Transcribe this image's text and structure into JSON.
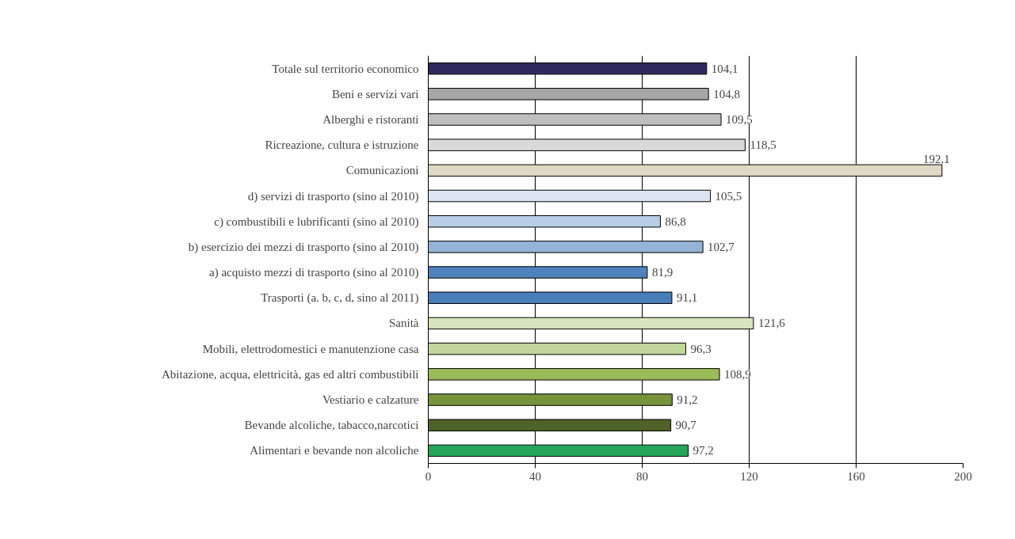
{
  "chart_data": {
    "type": "bar",
    "orientation": "horizontal",
    "categories": [
      "Totale sul territorio economico",
      "Beni e servizi vari",
      "Alberghi e ristoranti",
      "Ricreazione, cultura e istruzione",
      "Comunicazioni",
      "d) servizi di trasporto (sino al 2010)",
      "c) combustibili e lubrificanti (sino al 2010)",
      "b) esercizio dei mezzi di trasporto (sino al 2010)",
      "a) acquisto mezzi di trasporto (sino al 2010)",
      "Trasporti (a. b, c, d, sino al 2011)",
      "Sanità",
      "Mobili, elettrodomestici e manutenzione casa",
      "Abitazione, acqua, elettricità, gas ed altri combustibili",
      "Vestiario e calzature",
      "Bevande alcoliche, tabacco,narcotici",
      "Alimentari e bevande non alcoliche"
    ],
    "values": [
      104.1,
      104.8,
      109.5,
      118.5,
      192.1,
      105.5,
      86.8,
      102.7,
      81.9,
      91.1,
      121.6,
      96.3,
      108.9,
      91.2,
      90.7,
      97.2
    ],
    "value_labels": [
      "104,1",
      "104,8",
      "109,5",
      "118,5",
      "192,1",
      "105,5",
      "86,8",
      "102,7",
      "81,9",
      "91,1",
      "121,6",
      "96,3",
      "108,9",
      "91,2",
      "90,7",
      "97,2"
    ],
    "colors": [
      "#2e2a5e",
      "#a6a6a6",
      "#bfbfbf",
      "#d9d9d9",
      "#ddd9c4",
      "#dce6f2",
      "#b9cde5",
      "#95b3d7",
      "#4f81bd",
      "#4a7ebb",
      "#d7e4bc",
      "#c3d69b",
      "#9bbb59",
      "#77933c",
      "#4f6228",
      "#23a55a"
    ],
    "xlim": [
      0,
      200
    ],
    "xticks": [
      0,
      40,
      80,
      120,
      160,
      200
    ],
    "grid": "x"
  }
}
